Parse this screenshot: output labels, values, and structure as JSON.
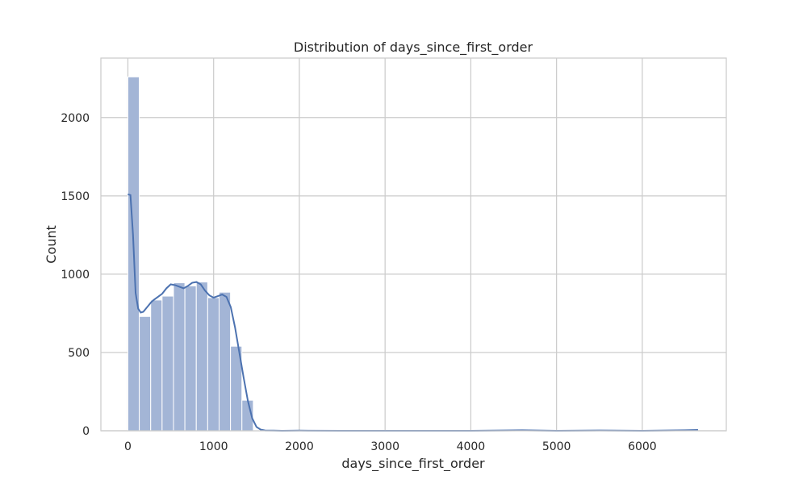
{
  "chart_data": {
    "type": "bar",
    "title": "Distribution of days_since_first_order",
    "xlabel": "days_since_first_order",
    "ylabel": "Count",
    "xlim": [
      -315,
      6980
    ],
    "ylim": [
      0,
      2380
    ],
    "x_ticks": [
      0,
      1000,
      2000,
      3000,
      4000,
      5000,
      6000
    ],
    "y_ticks": [
      0,
      500,
      1000,
      1500,
      2000
    ],
    "grid": true,
    "bar_color": "#a3b5d6",
    "line_color": "#4c72b0",
    "bins": [
      {
        "start": 0,
        "end": 133,
        "count": 2260
      },
      {
        "start": 133,
        "end": 266,
        "count": 730
      },
      {
        "start": 266,
        "end": 399,
        "count": 835
      },
      {
        "start": 399,
        "end": 532,
        "count": 860
      },
      {
        "start": 532,
        "end": 665,
        "count": 945
      },
      {
        "start": 665,
        "end": 798,
        "count": 925
      },
      {
        "start": 798,
        "end": 931,
        "count": 950
      },
      {
        "start": 931,
        "end": 1064,
        "count": 850
      },
      {
        "start": 1064,
        "end": 1197,
        "count": 885
      },
      {
        "start": 1197,
        "end": 1330,
        "count": 540
      },
      {
        "start": 1330,
        "end": 1463,
        "count": 195
      },
      {
        "start": 1463,
        "end": 1596,
        "count": 3
      },
      {
        "start": 1596,
        "end": 1729,
        "count": 1
      },
      {
        "start": 1995,
        "end": 2128,
        "count": 2
      },
      {
        "start": 2128,
        "end": 2261,
        "count": 1
      },
      {
        "start": 4522,
        "end": 4655,
        "count": 1
      },
      {
        "start": 5453,
        "end": 5586,
        "count": 1
      },
      {
        "start": 6517,
        "end": 6650,
        "count": 1
      }
    ],
    "kde": {
      "x": [
        0,
        30,
        60,
        90,
        120,
        150,
        180,
        210,
        240,
        270,
        300,
        350,
        400,
        450,
        500,
        550,
        600,
        650,
        700,
        750,
        800,
        850,
        900,
        950,
        1000,
        1050,
        1100,
        1150,
        1200,
        1250,
        1300,
        1350,
        1400,
        1450,
        1500,
        1550,
        1600,
        1700,
        1800,
        2000,
        2500,
        3000,
        4000,
        4600,
        5000,
        5500,
        6000,
        6500,
        6650
      ],
      "y": [
        1510,
        1505,
        1250,
        880,
        780,
        755,
        760,
        780,
        800,
        820,
        835,
        855,
        875,
        910,
        935,
        930,
        920,
        910,
        925,
        945,
        950,
        935,
        895,
        865,
        850,
        860,
        870,
        855,
        790,
        660,
        500,
        340,
        190,
        80,
        25,
        7,
        2,
        1,
        0,
        1,
        0,
        0,
        0,
        3,
        0,
        2,
        0,
        3,
        5
      ]
    }
  }
}
